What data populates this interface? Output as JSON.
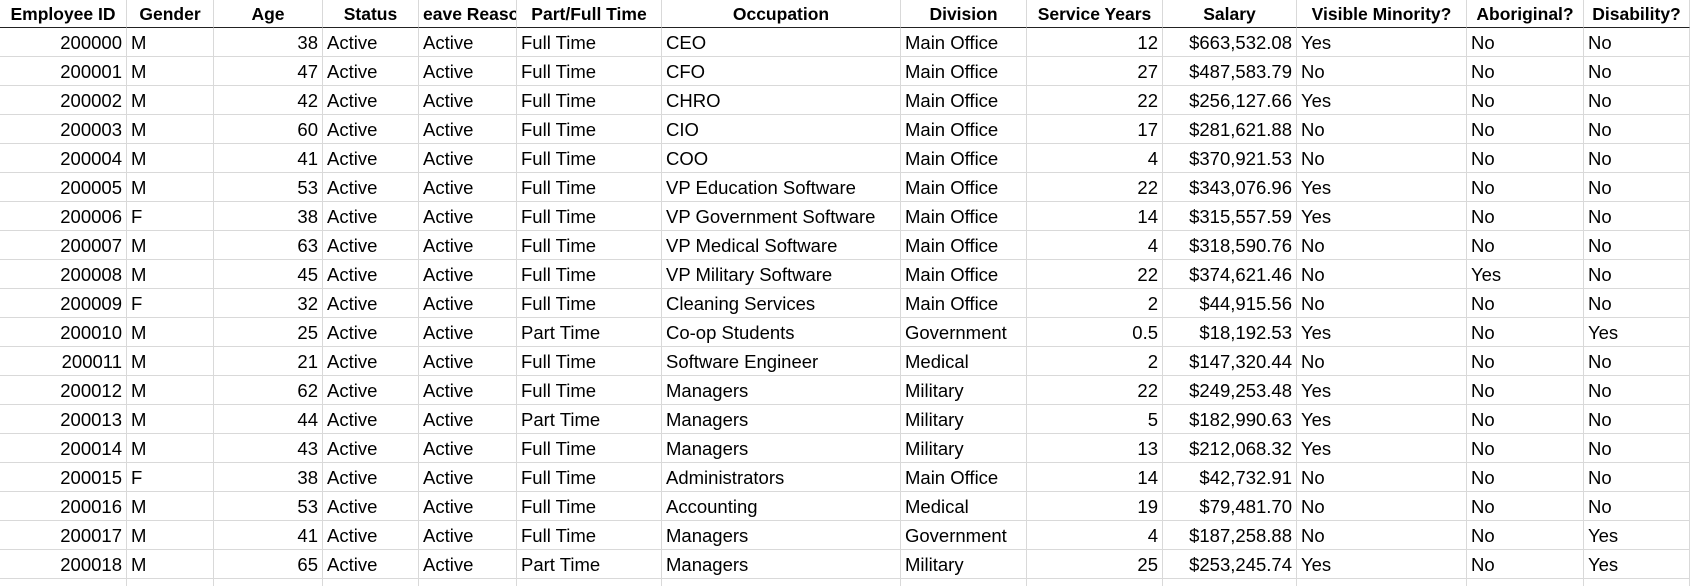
{
  "table": {
    "header": [
      "Employee ID",
      "Gender",
      "Age",
      "Status",
      "eave Reaso",
      "Part/Full Time",
      "Occupation",
      "Division",
      "Service Years",
      "Salary",
      "Visible Minority?",
      "Aboriginal?",
      "Disability?"
    ],
    "rows": [
      [
        "200000",
        "M",
        "38",
        "Active",
        "Active",
        "Full Time",
        "CEO",
        "Main Office",
        "12",
        "$663,532.08",
        "Yes",
        "No",
        "No"
      ],
      [
        "200001",
        "M",
        "47",
        "Active",
        "Active",
        "Full Time",
        "CFO",
        "Main Office",
        "27",
        "$487,583.79",
        "No",
        "No",
        "No"
      ],
      [
        "200002",
        "M",
        "42",
        "Active",
        "Active",
        "Full Time",
        "CHRO",
        "Main Office",
        "22",
        "$256,127.66",
        "Yes",
        "No",
        "No"
      ],
      [
        "200003",
        "M",
        "60",
        "Active",
        "Active",
        "Full Time",
        "CIO",
        "Main Office",
        "17",
        "$281,621.88",
        "No",
        "No",
        "No"
      ],
      [
        "200004",
        "M",
        "41",
        "Active",
        "Active",
        "Full Time",
        "COO",
        "Main Office",
        "4",
        "$370,921.53",
        "No",
        "No",
        "No"
      ],
      [
        "200005",
        "M",
        "53",
        "Active",
        "Active",
        "Full Time",
        "VP Education Software",
        "Main Office",
        "22",
        "$343,076.96",
        "Yes",
        "No",
        "No"
      ],
      [
        "200006",
        "F",
        "38",
        "Active",
        "Active",
        "Full Time",
        "VP Government Software",
        "Main Office",
        "14",
        "$315,557.59",
        "Yes",
        "No",
        "No"
      ],
      [
        "200007",
        "M",
        "63",
        "Active",
        "Active",
        "Full Time",
        "VP Medical Software",
        "Main Office",
        "4",
        "$318,590.76",
        "No",
        "No",
        "No"
      ],
      [
        "200008",
        "M",
        "45",
        "Active",
        "Active",
        "Full Time",
        "VP Military Software",
        "Main Office",
        "22",
        "$374,621.46",
        "No",
        "Yes",
        "No"
      ],
      [
        "200009",
        "F",
        "32",
        "Active",
        "Active",
        "Full Time",
        "Cleaning Services",
        "Main Office",
        "2",
        "$44,915.56",
        "No",
        "No",
        "No"
      ],
      [
        "200010",
        "M",
        "25",
        "Active",
        "Active",
        "Part Time",
        "Co-op Students",
        "Government",
        "0.5",
        "$18,192.53",
        "Yes",
        "No",
        "Yes"
      ],
      [
        "200011",
        "M",
        "21",
        "Active",
        "Active",
        "Full Time",
        "Software Engineer",
        "Medical",
        "2",
        "$147,320.44",
        "No",
        "No",
        "No"
      ],
      [
        "200012",
        "M",
        "62",
        "Active",
        "Active",
        "Full Time",
        "Managers",
        "Military",
        "22",
        "$249,253.48",
        "Yes",
        "No",
        "No"
      ],
      [
        "200013",
        "M",
        "44",
        "Active",
        "Active",
        "Part Time",
        "Managers",
        "Military",
        "5",
        "$182,990.63",
        "Yes",
        "No",
        "No"
      ],
      [
        "200014",
        "M",
        "43",
        "Active",
        "Active",
        "Full Time",
        "Managers",
        "Military",
        "13",
        "$212,068.32",
        "Yes",
        "No",
        "No"
      ],
      [
        "200015",
        "F",
        "38",
        "Active",
        "Active",
        "Full Time",
        "Administrators",
        "Main Office",
        "14",
        "$42,732.91",
        "No",
        "No",
        "No"
      ],
      [
        "200016",
        "M",
        "53",
        "Active",
        "Active",
        "Full Time",
        "Accounting",
        "Medical",
        "19",
        "$79,481.70",
        "No",
        "No",
        "No"
      ],
      [
        "200017",
        "M",
        "41",
        "Active",
        "Active",
        "Full Time",
        "Managers",
        "Government",
        "4",
        "$187,258.88",
        "No",
        "No",
        "Yes"
      ],
      [
        "200018",
        "M",
        "65",
        "Active",
        "Active",
        "Part Time",
        "Managers",
        "Military",
        "25",
        "$253,245.74",
        "Yes",
        "No",
        "Yes"
      ]
    ]
  }
}
